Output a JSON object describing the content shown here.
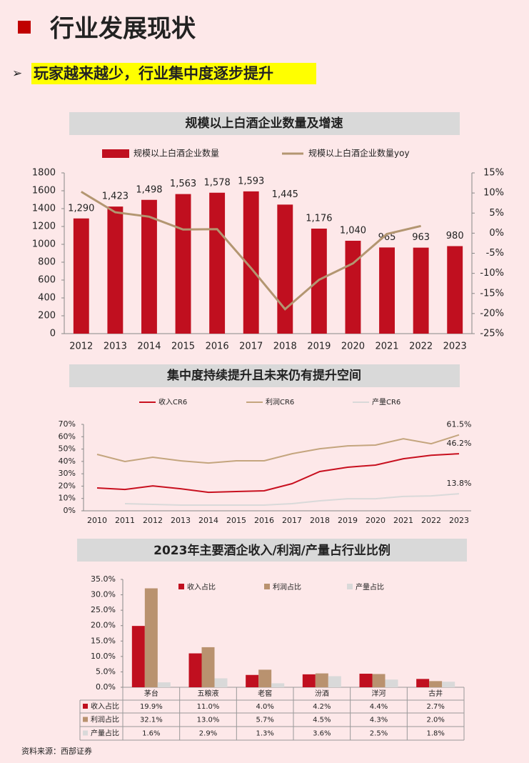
{
  "header": {
    "title": "行业发展现状",
    "subtitle": "玩家越来越少，行业集中度逐步提升"
  },
  "chart_data": [
    {
      "type": "bar",
      "title": "规模以上白酒企业数量及增速",
      "categories": [
        "2012",
        "2013",
        "2014",
        "2015",
        "2016",
        "2017",
        "2018",
        "2019",
        "2020",
        "2021",
        "2022",
        "2023"
      ],
      "series": [
        {
          "name": "规模以上白酒企业数量",
          "type": "bar",
          "color": "#c00f1f",
          "values": [
            1290,
            1423,
            1498,
            1563,
            1578,
            1593,
            1445,
            1176,
            1040,
            965,
            963,
            980
          ],
          "value_labels": [
            "1,290",
            "1,423",
            "1,498",
            "1,563",
            "1,578",
            "1,593",
            "1,445",
            "1,176",
            "1,040",
            "965",
            "963",
            "980"
          ]
        },
        {
          "name": "规模以上白酒企业数量yoy",
          "type": "line",
          "axis": "y2",
          "color": "#b39671",
          "values": [
            10.3,
            5.2,
            4.1,
            0.9,
            1.0,
            -8.7,
            -18.9,
            -11.6,
            -7.5,
            -0.2,
            1.8,
            null
          ]
        }
      ],
      "ylim": [
        0,
        1800
      ],
      "yticks": [
        0,
        200,
        400,
        600,
        800,
        1000,
        1200,
        1400,
        1600,
        1800
      ],
      "y2lim": [
        -25,
        15
      ],
      "y2ticks": [
        {
          "value": -25,
          "label": "-25%"
        },
        {
          "value": -20,
          "label": "-20%"
        },
        {
          "value": -15,
          "label": "-15%"
        },
        {
          "value": -10,
          "label": "-10%"
        },
        {
          "value": -5,
          "label": "-5%"
        },
        {
          "value": 0,
          "label": "0%"
        },
        {
          "value": 5,
          "label": "5%"
        },
        {
          "value": 10,
          "label": "10%"
        },
        {
          "value": 15,
          "label": "15%"
        }
      ]
    },
    {
      "type": "line",
      "title": "集中度持续提升且未来仍有提升空间",
      "categories": [
        "2010",
        "2011",
        "2012",
        "2013",
        "2014",
        "2015",
        "2016",
        "2017",
        "2018",
        "2019",
        "2020",
        "2021",
        "2022",
        "2023"
      ],
      "series": [
        {
          "name": "收入CR6",
          "color": "#c8101f",
          "values": [
            18.5,
            17.3,
            20.2,
            17.9,
            15.0,
            15.6,
            16.2,
            22.0,
            31.8,
            35.3,
            37.0,
            42.2,
            45.0,
            46.2
          ],
          "value_labels": [
            null,
            null,
            null,
            null,
            null,
            null,
            null,
            null,
            null,
            null,
            null,
            null,
            null,
            "46.2%"
          ]
        },
        {
          "name": "利润CR6",
          "color": "#c4a57e",
          "values": [
            45.7,
            39.9,
            43.4,
            40.5,
            38.7,
            40.5,
            40.5,
            46.2,
            50.3,
            52.6,
            53.2,
            58.4,
            54.3,
            61.5
          ],
          "value_labels": [
            null,
            null,
            null,
            null,
            null,
            null,
            null,
            null,
            null,
            null,
            null,
            null,
            null,
            "61.5%"
          ]
        },
        {
          "name": "产量CR6",
          "color": "#d9d9d9",
          "values": [
            null,
            5.8,
            5.2,
            4.6,
            4.6,
            4.6,
            4.6,
            5.8,
            8.1,
            9.8,
            9.8,
            11.6,
            12.1,
            13.8
          ],
          "value_labels": [
            null,
            null,
            null,
            null,
            null,
            null,
            null,
            null,
            null,
            null,
            null,
            null,
            null,
            "13.8%"
          ]
        }
      ],
      "ylim": [
        0,
        70
      ],
      "yticks": [
        {
          "value": 0,
          "label": "0%"
        },
        {
          "value": 10,
          "label": "10%"
        },
        {
          "value": 20,
          "label": "20%"
        },
        {
          "value": 30,
          "label": "30%"
        },
        {
          "value": 40,
          "label": "40%"
        },
        {
          "value": 50,
          "label": "50%"
        },
        {
          "value": 60,
          "label": "60%"
        },
        {
          "value": 70,
          "label": "70%"
        }
      ]
    },
    {
      "type": "bar",
      "title": "2023年主要酒企收入/利润/产量占行业比例",
      "categories": [
        "茅台",
        "五粮液",
        "老窖",
        "汾酒",
        "洋河",
        "古井"
      ],
      "series": [
        {
          "name": "收入占比",
          "color": "#c00f1f",
          "values": [
            19.9,
            11.0,
            4.0,
            4.2,
            4.4,
            2.7
          ],
          "value_labels": [
            "19.9%",
            "11.0%",
            "4.0%",
            "4.2%",
            "4.4%",
            "2.7%"
          ]
        },
        {
          "name": "利润占比",
          "color": "#b9926f",
          "values": [
            32.1,
            13.0,
            5.7,
            4.5,
            4.3,
            2.0
          ],
          "value_labels": [
            "32.1%",
            "13.0%",
            "5.7%",
            "4.5%",
            "4.3%",
            "2.0%"
          ]
        },
        {
          "name": "产量占比",
          "color": "#d9d9d9",
          "values": [
            1.6,
            2.9,
            1.3,
            3.6,
            2.5,
            1.8
          ],
          "value_labels": [
            "1.6%",
            "2.9%",
            "1.3%",
            "3.6%",
            "2.5%",
            "1.8%"
          ]
        }
      ],
      "ylim": [
        0,
        35
      ],
      "yticks": [
        {
          "value": 0,
          "label": "0.0%"
        },
        {
          "value": 5,
          "label": "5.0%"
        },
        {
          "value": 10,
          "label": "10.0%"
        },
        {
          "value": 15,
          "label": "15.0%"
        },
        {
          "value": 20,
          "label": "20.0%"
        },
        {
          "value": 25,
          "label": "25.0%"
        },
        {
          "value": 30,
          "label": "30.0%"
        },
        {
          "value": 35,
          "label": "35.0%"
        }
      ]
    }
  ],
  "source": "资料来源：西部证券"
}
